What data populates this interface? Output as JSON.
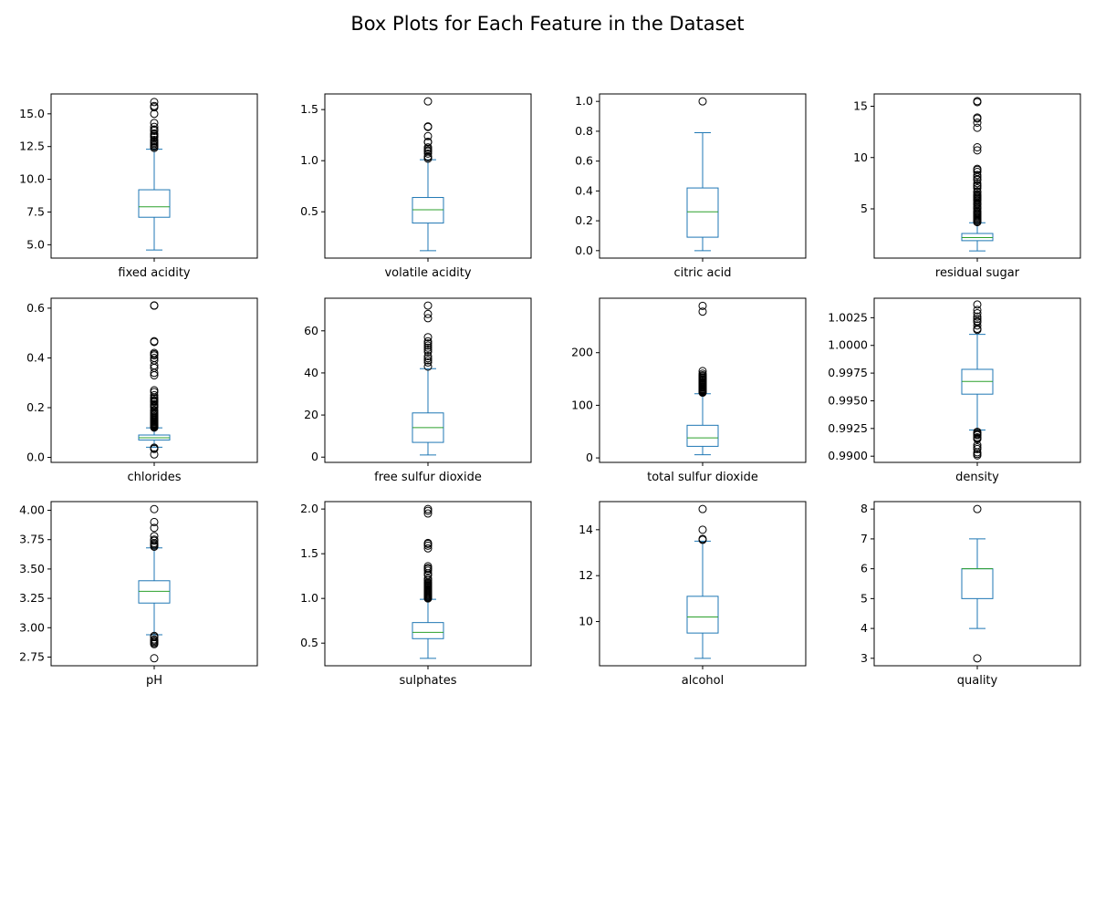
{
  "title": "Box Plots for Each Feature in the Dataset",
  "chart_data": [
    {
      "type": "box",
      "xlabel": "fixed acidity",
      "yticks": [
        5.0,
        7.5,
        10.0,
        12.5,
        15.0
      ],
      "tick_format": 1,
      "ylim": [
        3.98,
        16.52
      ],
      "box": {
        "whisker_low": 4.6,
        "q1": 7.1,
        "median": 7.9,
        "q3": 9.2,
        "whisker_high": 12.3
      },
      "outliers": [
        12.4,
        12.5,
        12.6,
        12.7,
        12.8,
        12.9,
        13.0,
        13.2,
        13.3,
        13.4,
        13.5,
        13.7,
        13.8,
        14.0,
        14.3,
        15.0,
        15.5,
        15.6,
        15.9
      ]
    },
    {
      "type": "box",
      "xlabel": "volatile acidity",
      "yticks": [
        0.5,
        1.0,
        1.5
      ],
      "tick_format": 1,
      "ylim": [
        0.047,
        1.653
      ],
      "box": {
        "whisker_low": 0.12,
        "q1": 0.39,
        "median": 0.52,
        "q3": 0.64,
        "whisker_high": 1.01
      },
      "outliers": [
        1.02,
        1.035,
        1.04,
        1.07,
        1.09,
        1.1,
        1.115,
        1.13,
        1.18,
        1.185,
        1.24,
        1.33,
        1.335,
        1.58
      ]
    },
    {
      "type": "box",
      "xlabel": "citric acid",
      "yticks": [
        0.0,
        0.2,
        0.4,
        0.6,
        0.8,
        1.0
      ],
      "tick_format": 1,
      "ylim": [
        -0.05,
        1.05
      ],
      "box": {
        "whisker_low": 0.0,
        "q1": 0.09,
        "median": 0.26,
        "q3": 0.42,
        "whisker_high": 0.79
      },
      "outliers": [
        1.0
      ]
    },
    {
      "type": "box",
      "xlabel": "residual sugar",
      "yticks": [
        5,
        10,
        15
      ],
      "tick_format": 0,
      "ylim": [
        0.2,
        16.2
      ],
      "box": {
        "whisker_low": 0.9,
        "q1": 1.9,
        "median": 2.2,
        "q3": 2.6,
        "whisker_high": 3.65
      },
      "outliers": [
        3.7,
        3.8,
        3.9,
        4.0,
        4.1,
        4.2,
        4.3,
        4.4,
        4.5,
        4.6,
        4.7,
        4.8,
        5.0,
        5.1,
        5.2,
        5.4,
        5.5,
        5.6,
        5.8,
        5.9,
        6.0,
        6.1,
        6.2,
        6.3,
        6.4,
        6.6,
        6.7,
        7.0,
        7.2,
        7.3,
        7.5,
        7.8,
        7.9,
        8.1,
        8.3,
        8.6,
        8.8,
        8.9,
        10.7,
        11.0,
        12.9,
        13.4,
        13.8,
        13.9,
        15.4,
        15.5
      ]
    },
    {
      "type": "box",
      "xlabel": "chlorides",
      "yticks": [
        0.0,
        0.2,
        0.4,
        0.6
      ],
      "tick_format": 1,
      "ylim": [
        -0.02,
        0.64
      ],
      "box": {
        "whisker_low": 0.041,
        "q1": 0.07,
        "median": 0.079,
        "q3": 0.09,
        "whisker_high": 0.119
      },
      "outliers": [
        0.012,
        0.034,
        0.038,
        0.039,
        0.12,
        0.122,
        0.125,
        0.128,
        0.13,
        0.133,
        0.136,
        0.14,
        0.143,
        0.146,
        0.15,
        0.153,
        0.157,
        0.16,
        0.165,
        0.17,
        0.175,
        0.18,
        0.186,
        0.19,
        0.2,
        0.205,
        0.21,
        0.214,
        0.222,
        0.226,
        0.23,
        0.236,
        0.241,
        0.25,
        0.263,
        0.27,
        0.33,
        0.34,
        0.36,
        0.37,
        0.39,
        0.4,
        0.41,
        0.415,
        0.42,
        0.464,
        0.467,
        0.61,
        0.611
      ]
    },
    {
      "type": "box",
      "xlabel": "free sulfur dioxide",
      "yticks": [
        0,
        20,
        40,
        60
      ],
      "tick_format": 0,
      "ylim": [
        -2.5,
        75.5
      ],
      "box": {
        "whisker_low": 1,
        "q1": 7,
        "median": 14,
        "q3": 21,
        "whisker_high": 42
      },
      "outliers": [
        43,
        45,
        46,
        47,
        48,
        50,
        51,
        52,
        53,
        54,
        55,
        57,
        66,
        68,
        72
      ]
    },
    {
      "type": "box",
      "xlabel": "total sulfur dioxide",
      "yticks": [
        0,
        100,
        200
      ],
      "tick_format": 0,
      "ylim": [
        -8.5,
        303.5
      ],
      "box": {
        "whisker_low": 6,
        "q1": 22,
        "median": 38,
        "q3": 62,
        "whisker_high": 122
      },
      "outliers": [
        124,
        125,
        126,
        127,
        128,
        129,
        130,
        131,
        133,
        134,
        135,
        136,
        138,
        139,
        140,
        141,
        143,
        144,
        145,
        147,
        148,
        149,
        151,
        152,
        153,
        155,
        157,
        160,
        165,
        278,
        289
      ]
    },
    {
      "type": "box",
      "xlabel": "density",
      "yticks": [
        0.99,
        0.9925,
        0.995,
        0.9975,
        1.0,
        1.0025
      ],
      "tick_format": 4,
      "ylim": [
        0.98944,
        1.00426
      ],
      "box": {
        "whisker_low": 0.99236,
        "q1": 0.9956,
        "median": 0.99675,
        "q3": 0.99784,
        "whisker_high": 1.001
      },
      "outliers": [
        0.99007,
        0.9902,
        0.99035,
        0.99064,
        0.9908,
        0.991,
        0.99154,
        0.99162,
        0.9917,
        0.9919,
        0.99191,
        0.992,
        0.9921,
        0.9922,
        1.0014,
        1.0015,
        1.0018,
        1.0021,
        1.0022,
        1.0024,
        1.0026,
        1.0029,
        1.0032,
        1.00369
      ]
    },
    {
      "type": "box",
      "xlabel": "pH",
      "yticks": [
        2.75,
        3.0,
        3.25,
        3.5,
        3.75,
        4.0
      ],
      "tick_format": 2,
      "ylim": [
        2.676,
        4.074
      ],
      "box": {
        "whisker_low": 2.94,
        "q1": 3.21,
        "median": 3.31,
        "q3": 3.4,
        "whisker_high": 3.68
      },
      "outliers": [
        2.74,
        2.86,
        2.87,
        2.88,
        2.89,
        2.9,
        2.92,
        2.93,
        3.69,
        3.7,
        3.71,
        3.72,
        3.74,
        3.75,
        3.78,
        3.85,
        3.9,
        4.01
      ]
    },
    {
      "type": "box",
      "xlabel": "sulphates",
      "yticks": [
        0.5,
        1.0,
        1.5,
        2.0
      ],
      "tick_format": 1,
      "ylim": [
        0.247,
        2.083
      ],
      "box": {
        "whisker_low": 0.33,
        "q1": 0.55,
        "median": 0.62,
        "q3": 0.73,
        "whisker_high": 0.99
      },
      "outliers": [
        1.0,
        1.01,
        1.02,
        1.03,
        1.04,
        1.05,
        1.06,
        1.07,
        1.08,
        1.09,
        1.1,
        1.11,
        1.12,
        1.13,
        1.14,
        1.15,
        1.16,
        1.17,
        1.18,
        1.2,
        1.22,
        1.26,
        1.28,
        1.31,
        1.33,
        1.34,
        1.36,
        1.56,
        1.59,
        1.61,
        1.62,
        1.95,
        1.98,
        2.0
      ]
    },
    {
      "type": "box",
      "xlabel": "alcohol",
      "yticks": [
        10,
        12,
        14
      ],
      "tick_format": 0,
      "ylim": [
        8.075,
        15.225
      ],
      "box": {
        "whisker_low": 8.4,
        "q1": 9.5,
        "median": 10.2,
        "q3": 11.1,
        "whisker_high": 13.5
      },
      "outliers": [
        13.56,
        13.6,
        14.0,
        14.9
      ]
    },
    {
      "type": "box",
      "xlabel": "quality",
      "yticks": [
        3,
        4,
        5,
        6,
        7,
        8
      ],
      "tick_format": 0,
      "ylim": [
        2.75,
        8.25
      ],
      "box": {
        "whisker_low": 4,
        "q1": 5,
        "median": 6,
        "q3": 6,
        "whisker_high": 7
      },
      "outliers": [
        3,
        8
      ]
    }
  ],
  "colors": {
    "box": "#1f77b4",
    "median": "#2ca02c",
    "outlier": "#000000",
    "axes": "#000000"
  }
}
